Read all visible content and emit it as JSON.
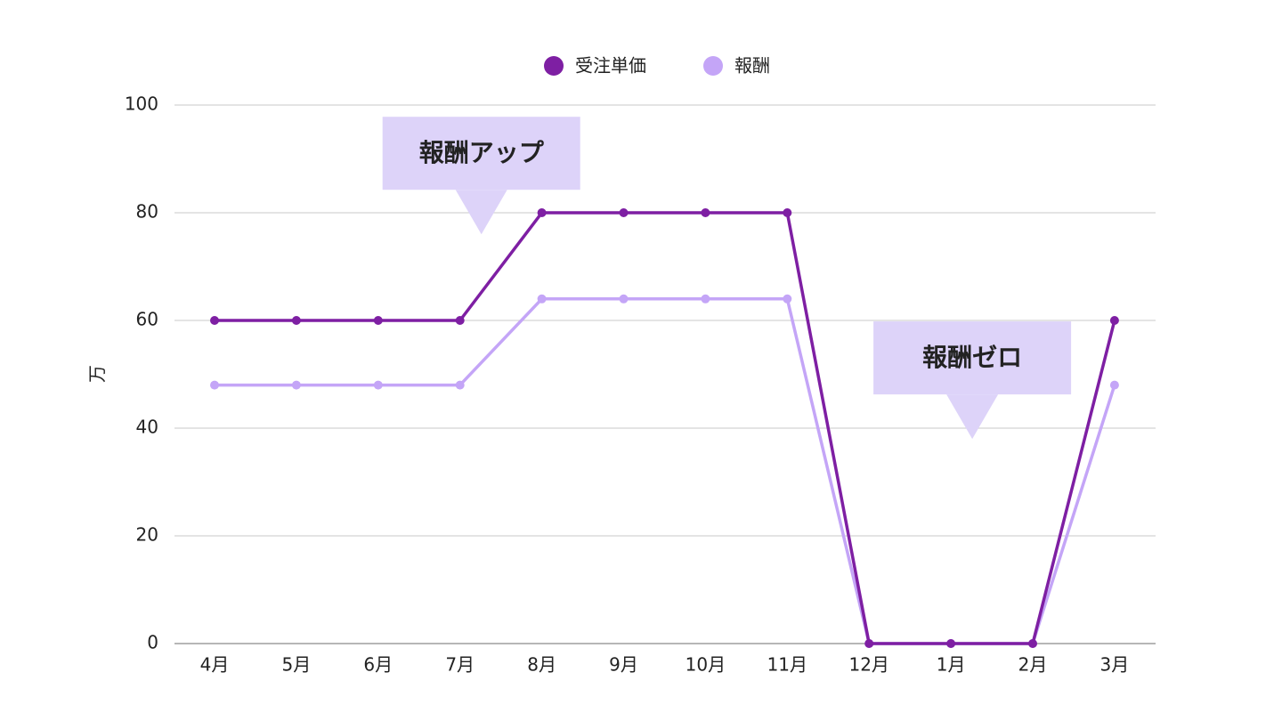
{
  "chart_data": {
    "type": "line",
    "categories": [
      "4月",
      "5月",
      "6月",
      "7月",
      "8月",
      "9月",
      "10月",
      "11月",
      "12月",
      "1月",
      "2月",
      "3月"
    ],
    "series": [
      {
        "name": "受注単価",
        "color": "#7e1fa3",
        "values": [
          60,
          60,
          60,
          60,
          80,
          80,
          80,
          80,
          0,
          0,
          0,
          60
        ]
      },
      {
        "name": "報酬",
        "color": "#c4a5f7",
        "values": [
          48,
          48,
          48,
          48,
          64,
          64,
          64,
          64,
          0,
          0,
          0,
          48
        ]
      }
    ],
    "ylabel": "万",
    "ylim": [
      0,
      100
    ],
    "yticks": [
      "0",
      "20",
      "40",
      "60",
      "80",
      "100"
    ],
    "grid": true,
    "legend_position": "top-center",
    "annotations": [
      {
        "text": "報酬アップ",
        "category": "7月",
        "value": 76,
        "color": "#ddd3f9"
      },
      {
        "text": "報酬ゼロ",
        "category": "1月",
        "value": 38,
        "color": "#ddd3f9"
      }
    ]
  }
}
